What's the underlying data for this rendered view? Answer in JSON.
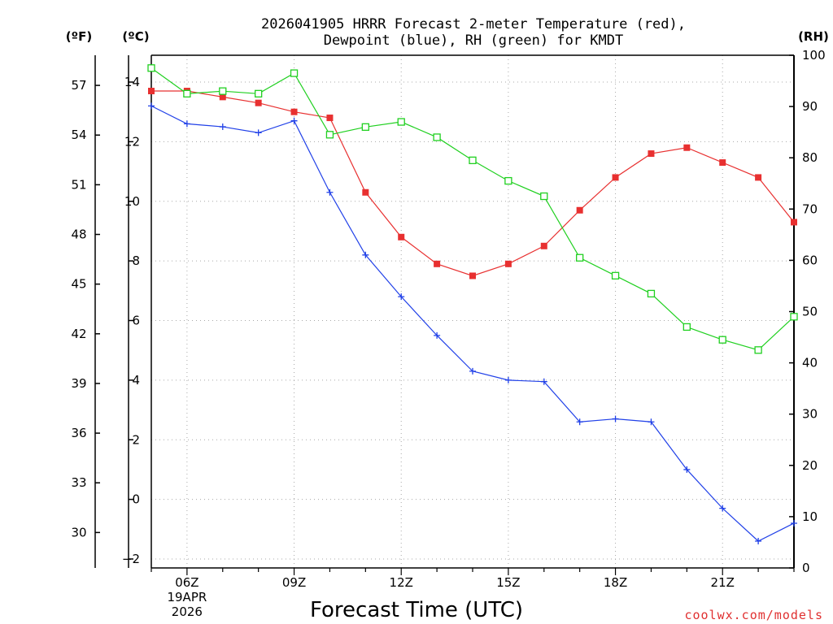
{
  "chart_data": {
    "type": "line",
    "title_line1": "2026041905 HRRR Forecast 2-meter Temperature (red),",
    "title_line2": "Dewpoint (blue), RH (green) for KMDT",
    "xlabel": "Forecast Time (UTC)",
    "credit": "coolwx.com/models",
    "units": {
      "fahrenheit": "(ºF)",
      "celsius": "(ºC)",
      "rh": "(RH)"
    },
    "x_hours": [
      5,
      6,
      7,
      8,
      9,
      10,
      11,
      12,
      13,
      14,
      15,
      16,
      17,
      18,
      19,
      20,
      21,
      22,
      23
    ],
    "x_ticks": [
      {
        "hour": 6,
        "label": "06Z",
        "sub1": "19APR",
        "sub2": "2026"
      },
      {
        "hour": 9,
        "label": "09Z"
      },
      {
        "hour": 12,
        "label": "12Z"
      },
      {
        "hour": 15,
        "label": "15Z"
      },
      {
        "hour": 18,
        "label": "18Z"
      },
      {
        "hour": 21,
        "label": "21Z"
      }
    ],
    "x_range": [
      5,
      23
    ],
    "y_celsius_range": [
      -2.3,
      14.9
    ],
    "y_celsius_ticks": [
      "14",
      "12",
      "10",
      "8",
      "6",
      "4",
      "2",
      "0",
      "−2"
    ],
    "y_celsius_tick_values": [
      14,
      12,
      10,
      8,
      6,
      4,
      2,
      0,
      -2
    ],
    "y_fahrenheit_ticks": [
      "57",
      "54",
      "51",
      "48",
      "45",
      "42",
      "39",
      "36",
      "33",
      "30"
    ],
    "y_fahrenheit_tick_values": [
      57,
      54,
      51,
      48,
      45,
      42,
      39,
      36,
      33,
      30
    ],
    "y_rh_range": [
      0,
      100
    ],
    "y_rh_ticks": [
      "100",
      "90",
      "80",
      "70",
      "60",
      "50",
      "40",
      "30",
      "20",
      "10",
      "0"
    ],
    "y_rh_tick_values": [
      100,
      90,
      80,
      70,
      60,
      50,
      40,
      30,
      20,
      10,
      0
    ],
    "grid": true,
    "series": [
      {
        "name": "Temperature",
        "color": "#e83030",
        "marker": "filled-square",
        "axis": "celsius",
        "values": [
          13.7,
          13.7,
          13.5,
          13.3,
          13.0,
          12.8,
          10.3,
          8.8,
          7.9,
          7.5,
          7.9,
          8.5,
          9.7,
          10.8,
          11.6,
          11.8,
          11.3,
          10.8,
          9.3
        ]
      },
      {
        "name": "Dewpoint",
        "color": "#2040e8",
        "marker": "plus",
        "axis": "celsius",
        "values": [
          13.2,
          12.6,
          12.5,
          12.3,
          12.7,
          10.3,
          8.2,
          6.8,
          5.5,
          4.3,
          4.0,
          3.95,
          2.6,
          2.7,
          2.6,
          1.0,
          -0.3,
          -1.4,
          -0.8
        ]
      },
      {
        "name": "RH",
        "color": "#20d020",
        "marker": "open-square",
        "axis": "rh",
        "values": [
          97.5,
          92.5,
          93,
          92.5,
          96.5,
          84.5,
          86,
          87,
          84,
          79.5,
          75.5,
          72.5,
          60.5,
          57,
          53.5,
          47,
          44.5,
          42.5,
          49
        ]
      }
    ]
  }
}
